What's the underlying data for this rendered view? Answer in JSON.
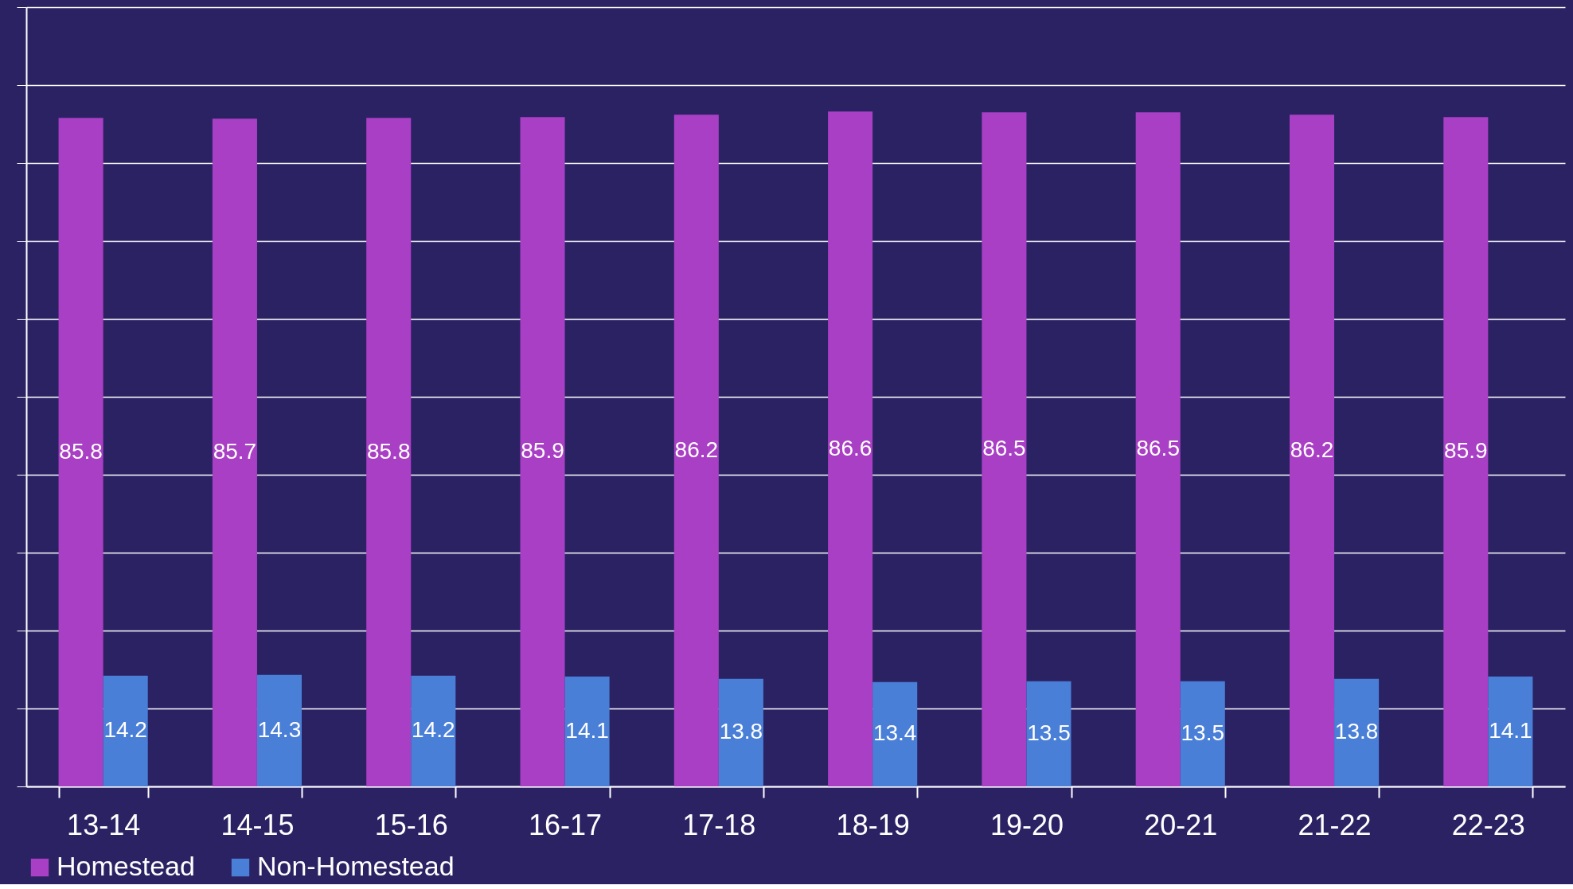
{
  "chart_data": {
    "type": "bar",
    "categories": [
      "13-14",
      "14-15",
      "15-16",
      "16-17",
      "17-18",
      "18-19",
      "19-20",
      "20-21",
      "21-22",
      "22-23"
    ],
    "series": [
      {
        "name": "Homestead",
        "color": "#a93fc4",
        "values": [
          85.8,
          85.7,
          85.8,
          85.9,
          86.2,
          86.6,
          86.5,
          86.5,
          86.2,
          85.9
        ]
      },
      {
        "name": "Non-Homestead",
        "color": "#4a7fd8",
        "values": [
          14.2,
          14.3,
          14.2,
          14.1,
          13.8,
          13.4,
          13.5,
          13.5,
          13.8,
          14.1
        ]
      }
    ],
    "ylim": [
      0,
      100
    ],
    "yticks": [
      {
        "value": 0,
        "label": null
      },
      {
        "value": 10,
        "label": null
      },
      {
        "value": 20,
        "label": null
      },
      {
        "value": 30,
        "label": null
      },
      {
        "value": 40,
        "label": null
      },
      {
        "value": 50,
        "label": null
      },
      {
        "value": 60,
        "label": null
      },
      {
        "value": 70,
        "label": null
      },
      {
        "value": 80,
        "label": null
      },
      {
        "value": 90,
        "label": null
      },
      {
        "value": 100,
        "label": null
      }
    ],
    "tick_labels": "x",
    "grid": "y",
    "legend": "bottom",
    "data_labels": true
  }
}
